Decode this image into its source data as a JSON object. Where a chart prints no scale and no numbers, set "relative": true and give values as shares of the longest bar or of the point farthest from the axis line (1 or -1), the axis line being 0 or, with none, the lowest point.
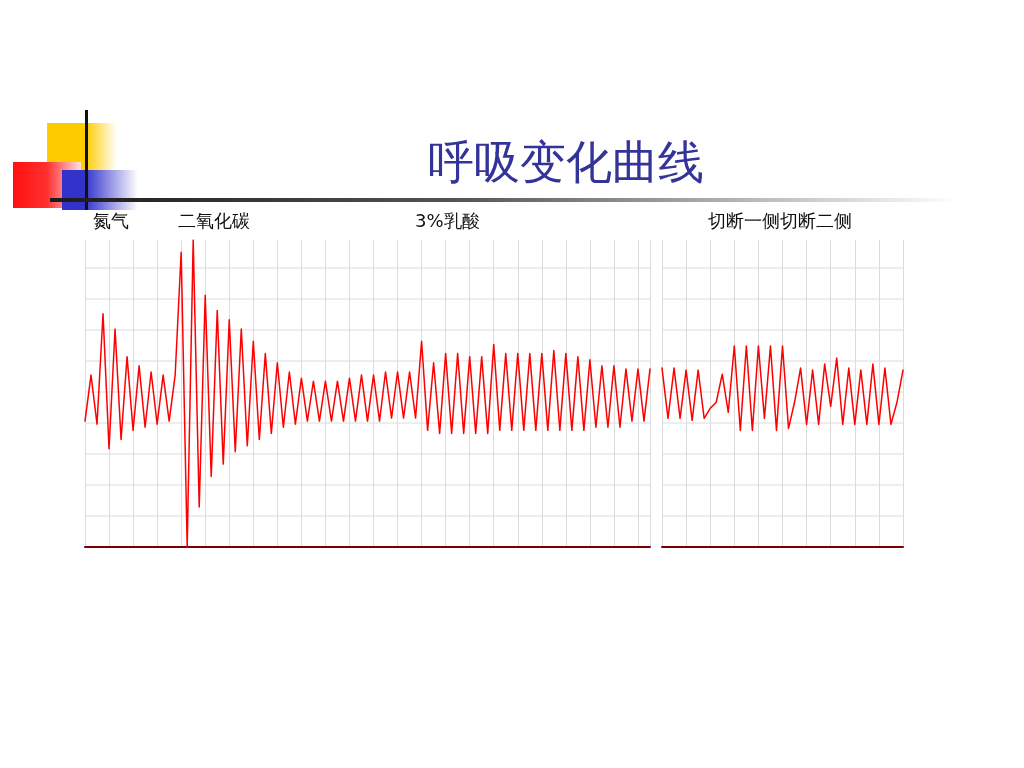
{
  "chart_data": [
    {
      "type": "line",
      "title": "呼吸变化曲线",
      "annotations": [
        "氮气",
        "二氧化碳",
        "3%乳酸"
      ],
      "categories": [
        null,
        null,
        null,
        null,
        null,
        null,
        null,
        null,
        null,
        null,
        null,
        null,
        null,
        null,
        null,
        null,
        null,
        null,
        null,
        null,
        null,
        null,
        null,
        null,
        null,
        null,
        null,
        null,
        null,
        null,
        null,
        null,
        null,
        null,
        null,
        null,
        null,
        null,
        null,
        null,
        null,
        null,
        null,
        null,
        null,
        null,
        null,
        null,
        null,
        null,
        null,
        null,
        null,
        null,
        null,
        null,
        null,
        null,
        null,
        null,
        null,
        null,
        null,
        null,
        null,
        null,
        null,
        null,
        null,
        null,
        null,
        null,
        null,
        null,
        null,
        null,
        null,
        null,
        null,
        null,
        null,
        null,
        null,
        null,
        null,
        null,
        null,
        null,
        null,
        null,
        null,
        null,
        null,
        null,
        null
      ],
      "values": [
        0.41,
        0.56,
        0.4,
        0.76,
        0.32,
        0.71,
        0.35,
        0.62,
        0.38,
        0.59,
        0.39,
        0.57,
        0.4,
        0.56,
        0.41,
        0.56,
        0.96,
        0.0,
        1.0,
        0.13,
        0.82,
        0.23,
        0.77,
        0.27,
        0.74,
        0.31,
        0.71,
        0.33,
        0.67,
        0.35,
        0.63,
        0.37,
        0.6,
        0.39,
        0.57,
        0.4,
        0.55,
        0.41,
        0.54,
        0.41,
        0.54,
        0.41,
        0.54,
        0.41,
        0.55,
        0.41,
        0.56,
        0.41,
        0.56,
        0.41,
        0.57,
        0.42,
        0.57,
        0.42,
        0.57,
        0.42,
        0.67,
        0.38,
        0.6,
        0.37,
        0.63,
        0.37,
        0.63,
        0.37,
        0.62,
        0.37,
        0.62,
        0.37,
        0.66,
        0.38,
        0.63,
        0.38,
        0.63,
        0.38,
        0.63,
        0.38,
        0.63,
        0.38,
        0.64,
        0.38,
        0.63,
        0.38,
        0.62,
        0.38,
        0.61,
        0.39,
        0.59,
        0.39,
        0.59,
        0.39,
        0.58,
        0.41,
        0.58,
        0.41,
        0.58
      ],
      "color": "#ff0000",
      "relative": true,
      "grid": true,
      "marker": "none",
      "line_style": "solid"
    },
    {
      "type": "line",
      "annotations": [
        "切断一侧切断二侧"
      ],
      "categories": [
        null,
        null,
        null,
        null,
        null,
        null,
        null,
        null,
        null,
        null,
        null,
        null,
        null,
        null,
        null,
        null,
        null,
        null,
        null,
        null,
        null,
        null,
        null,
        null,
        null,
        null,
        null,
        null,
        null,
        null,
        null,
        null,
        null,
        null,
        null,
        null,
        null,
        null,
        null,
        null,
        null
      ],
      "values": [
        0.89,
        0.64,
        0.89,
        0.64,
        0.88,
        0.63,
        0.88,
        0.64,
        0.69,
        0.72,
        0.86,
        0.67,
        1.0,
        0.58,
        1.0,
        0.58,
        1.0,
        0.64,
        1.0,
        0.58,
        1.0,
        0.59,
        0.72,
        0.89,
        0.61,
        0.88,
        0.61,
        0.91,
        0.7,
        0.94,
        0.61,
        0.89,
        0.61,
        0.88,
        0.61,
        0.91,
        0.61,
        0.89,
        0.61,
        0.72,
        0.88
      ],
      "color": "#ff0000",
      "relative": true,
      "grid": true,
      "marker": "none",
      "line_style": "solid"
    }
  ]
}
